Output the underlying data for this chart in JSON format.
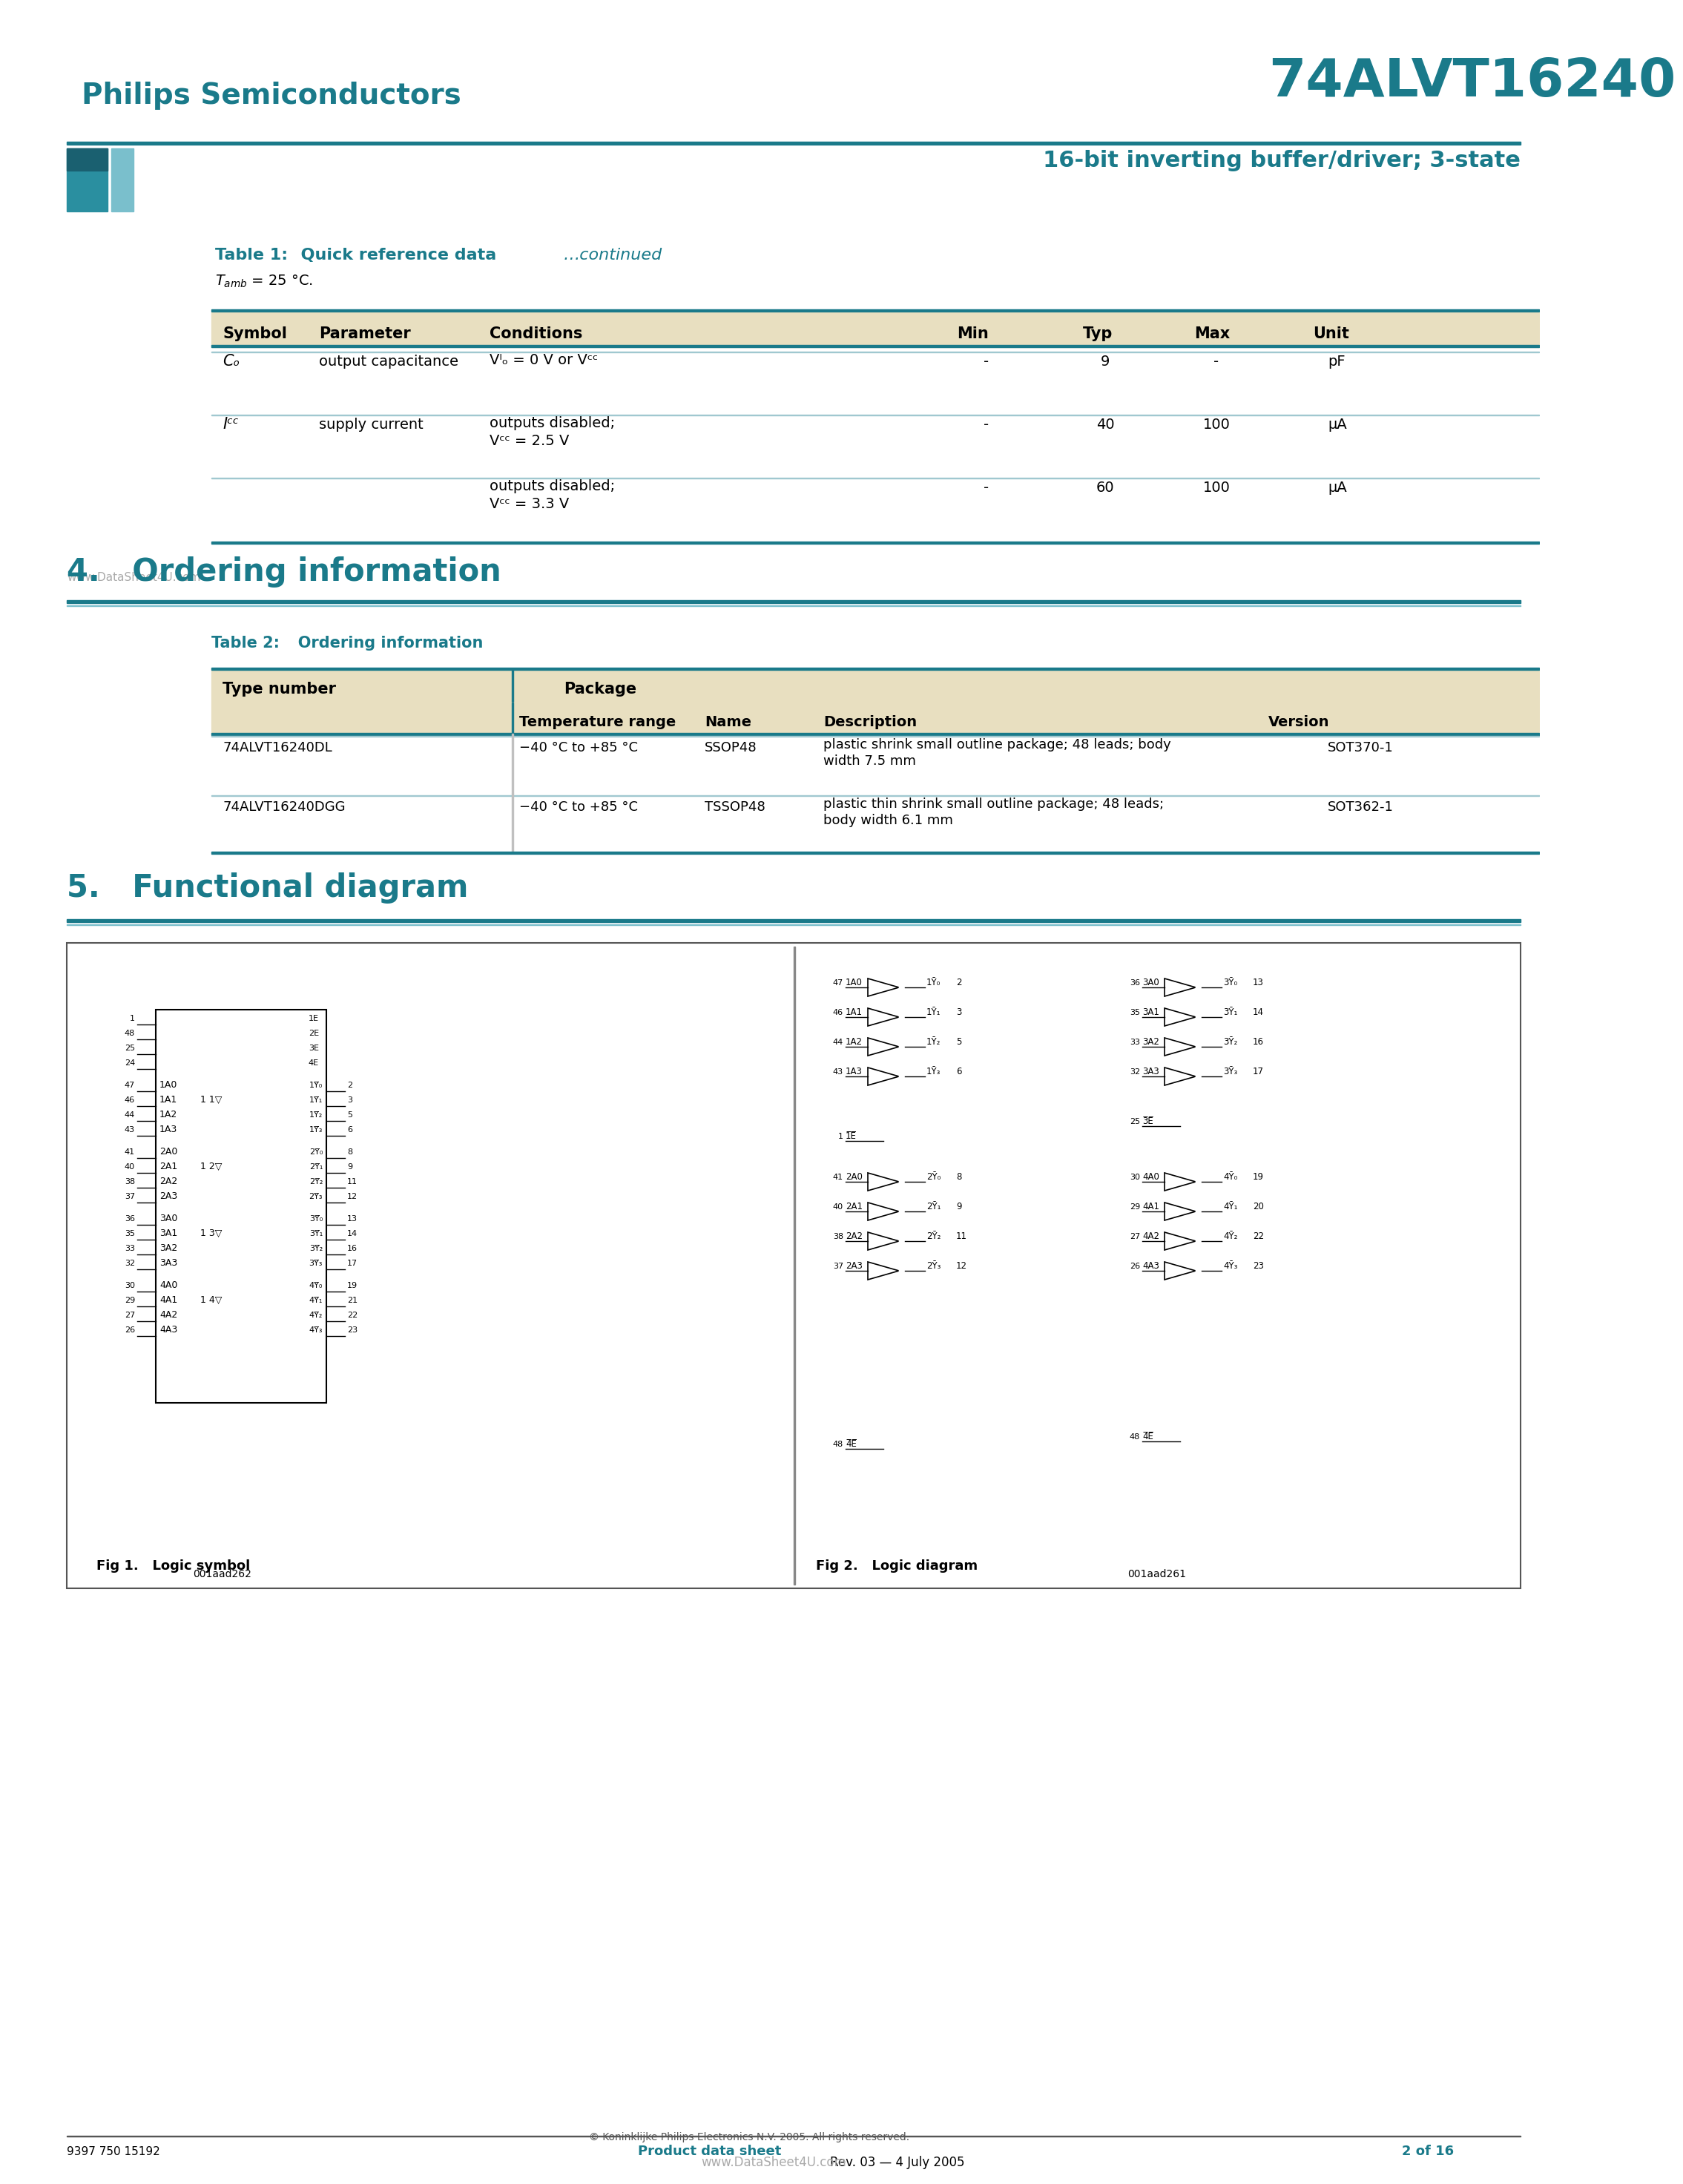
{
  "title_company": "Philips Semiconductors",
  "title_part": "74ALVT16240",
  "title_desc": "16-bit inverting buffer/driver; 3-state",
  "header_color": "#1a7a8a",
  "header_bg": "#e8dfc0",
  "teal_color": "#1a7a8a",
  "dark_teal": "#1a6070",
  "table1_title": "Table 1:",
  "table1_subtitle": "Quick reference data …continued",
  "table1_note": "T",
  "table1_note2": "amb",
  "table1_note3": " = 25 °C.",
  "table1_headers": [
    "Symbol",
    "Parameter",
    "Conditions",
    "Min",
    "Typ",
    "Max",
    "Unit"
  ],
  "table1_rows": [
    [
      "Cₒ",
      "output capacitance",
      "Vᴵₒ = 0 V or Vᶜᶜ",
      "-",
      "9",
      "-",
      "pF"
    ],
    [
      "Iᶜᶜ",
      "supply current",
      "outputs disabled;\nVᶜᶜ = 2.5 V",
      "-",
      "40",
      "100",
      "μA"
    ],
    [
      "",
      "",
      "outputs disabled;\nVᶜᶜ = 3.3 V",
      "-",
      "60",
      "100",
      "μA"
    ]
  ],
  "section4_title": "4.   Ordering information",
  "table2_title": "Table 2:",
  "table2_subtitle": "Ordering information",
  "table2_col1": "Type number",
  "table2_col2": "Package",
  "table2_sub_headers": [
    "Temperature range",
    "Name",
    "Description",
    "Version"
  ],
  "table2_rows": [
    [
      "74ALVT16240DL",
      "−40 °C to +85 °C",
      "SSOP48",
      "plastic shrink small outline package; 48 leads; body\nwidth 7.5 mm",
      "SOT370-1"
    ],
    [
      "74ALVT16240DGG",
      "−40 °C to +85 °C",
      "TSSOP48",
      "plastic thin shrink small outline package; 48 leads;\nbody width 6.1 mm",
      "SOT362-1"
    ]
  ],
  "section5_title": "5.   Functional diagram",
  "footer_left": "9397 750 15192",
  "footer_center_label": "Product data sheet",
  "footer_center_rev": "Rev. 03 — 4 July 2005",
  "footer_right": "2 of 16",
  "footer_copy": "© Koninklijke Philips Electronics N.V. 2005. All rights reserved.",
  "watermark": "www.DataSheet4U.com"
}
